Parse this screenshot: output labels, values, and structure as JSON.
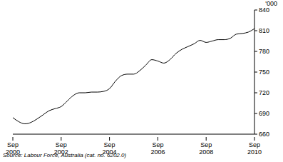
{
  "chart_data": {
    "type": "line",
    "ylabel": "'000",
    "source": "Source: Labour Force, Australia (cat. no. 6202.0)",
    "categories": [
      "Sep 2000",
      null,
      null,
      null,
      null,
      null,
      null,
      null,
      "Sep 2002",
      null,
      null,
      null,
      null,
      null,
      null,
      null,
      "Sep 2004",
      null,
      null,
      null,
      null,
      null,
      null,
      null,
      "Sep 2006",
      null,
      null,
      null,
      null,
      null,
      null,
      null,
      "Sep 2008",
      null,
      null,
      null,
      null,
      null,
      null,
      null,
      "Sep 2010"
    ],
    "values": [
      684,
      678,
      675,
      677,
      682,
      688,
      694,
      697,
      700,
      708,
      716,
      720,
      720,
      721,
      721,
      722,
      726,
      737,
      745,
      747,
      747,
      752,
      760,
      768,
      766,
      763,
      768,
      777,
      783,
      787,
      791,
      796,
      793,
      795,
      797,
      797,
      799,
      805,
      806,
      808,
      813
    ],
    "color": "#000000",
    "ylim": [
      660,
      840
    ],
    "yticks": [
      660,
      690,
      720,
      750,
      780,
      810,
      840
    ],
    "grid": false
  }
}
